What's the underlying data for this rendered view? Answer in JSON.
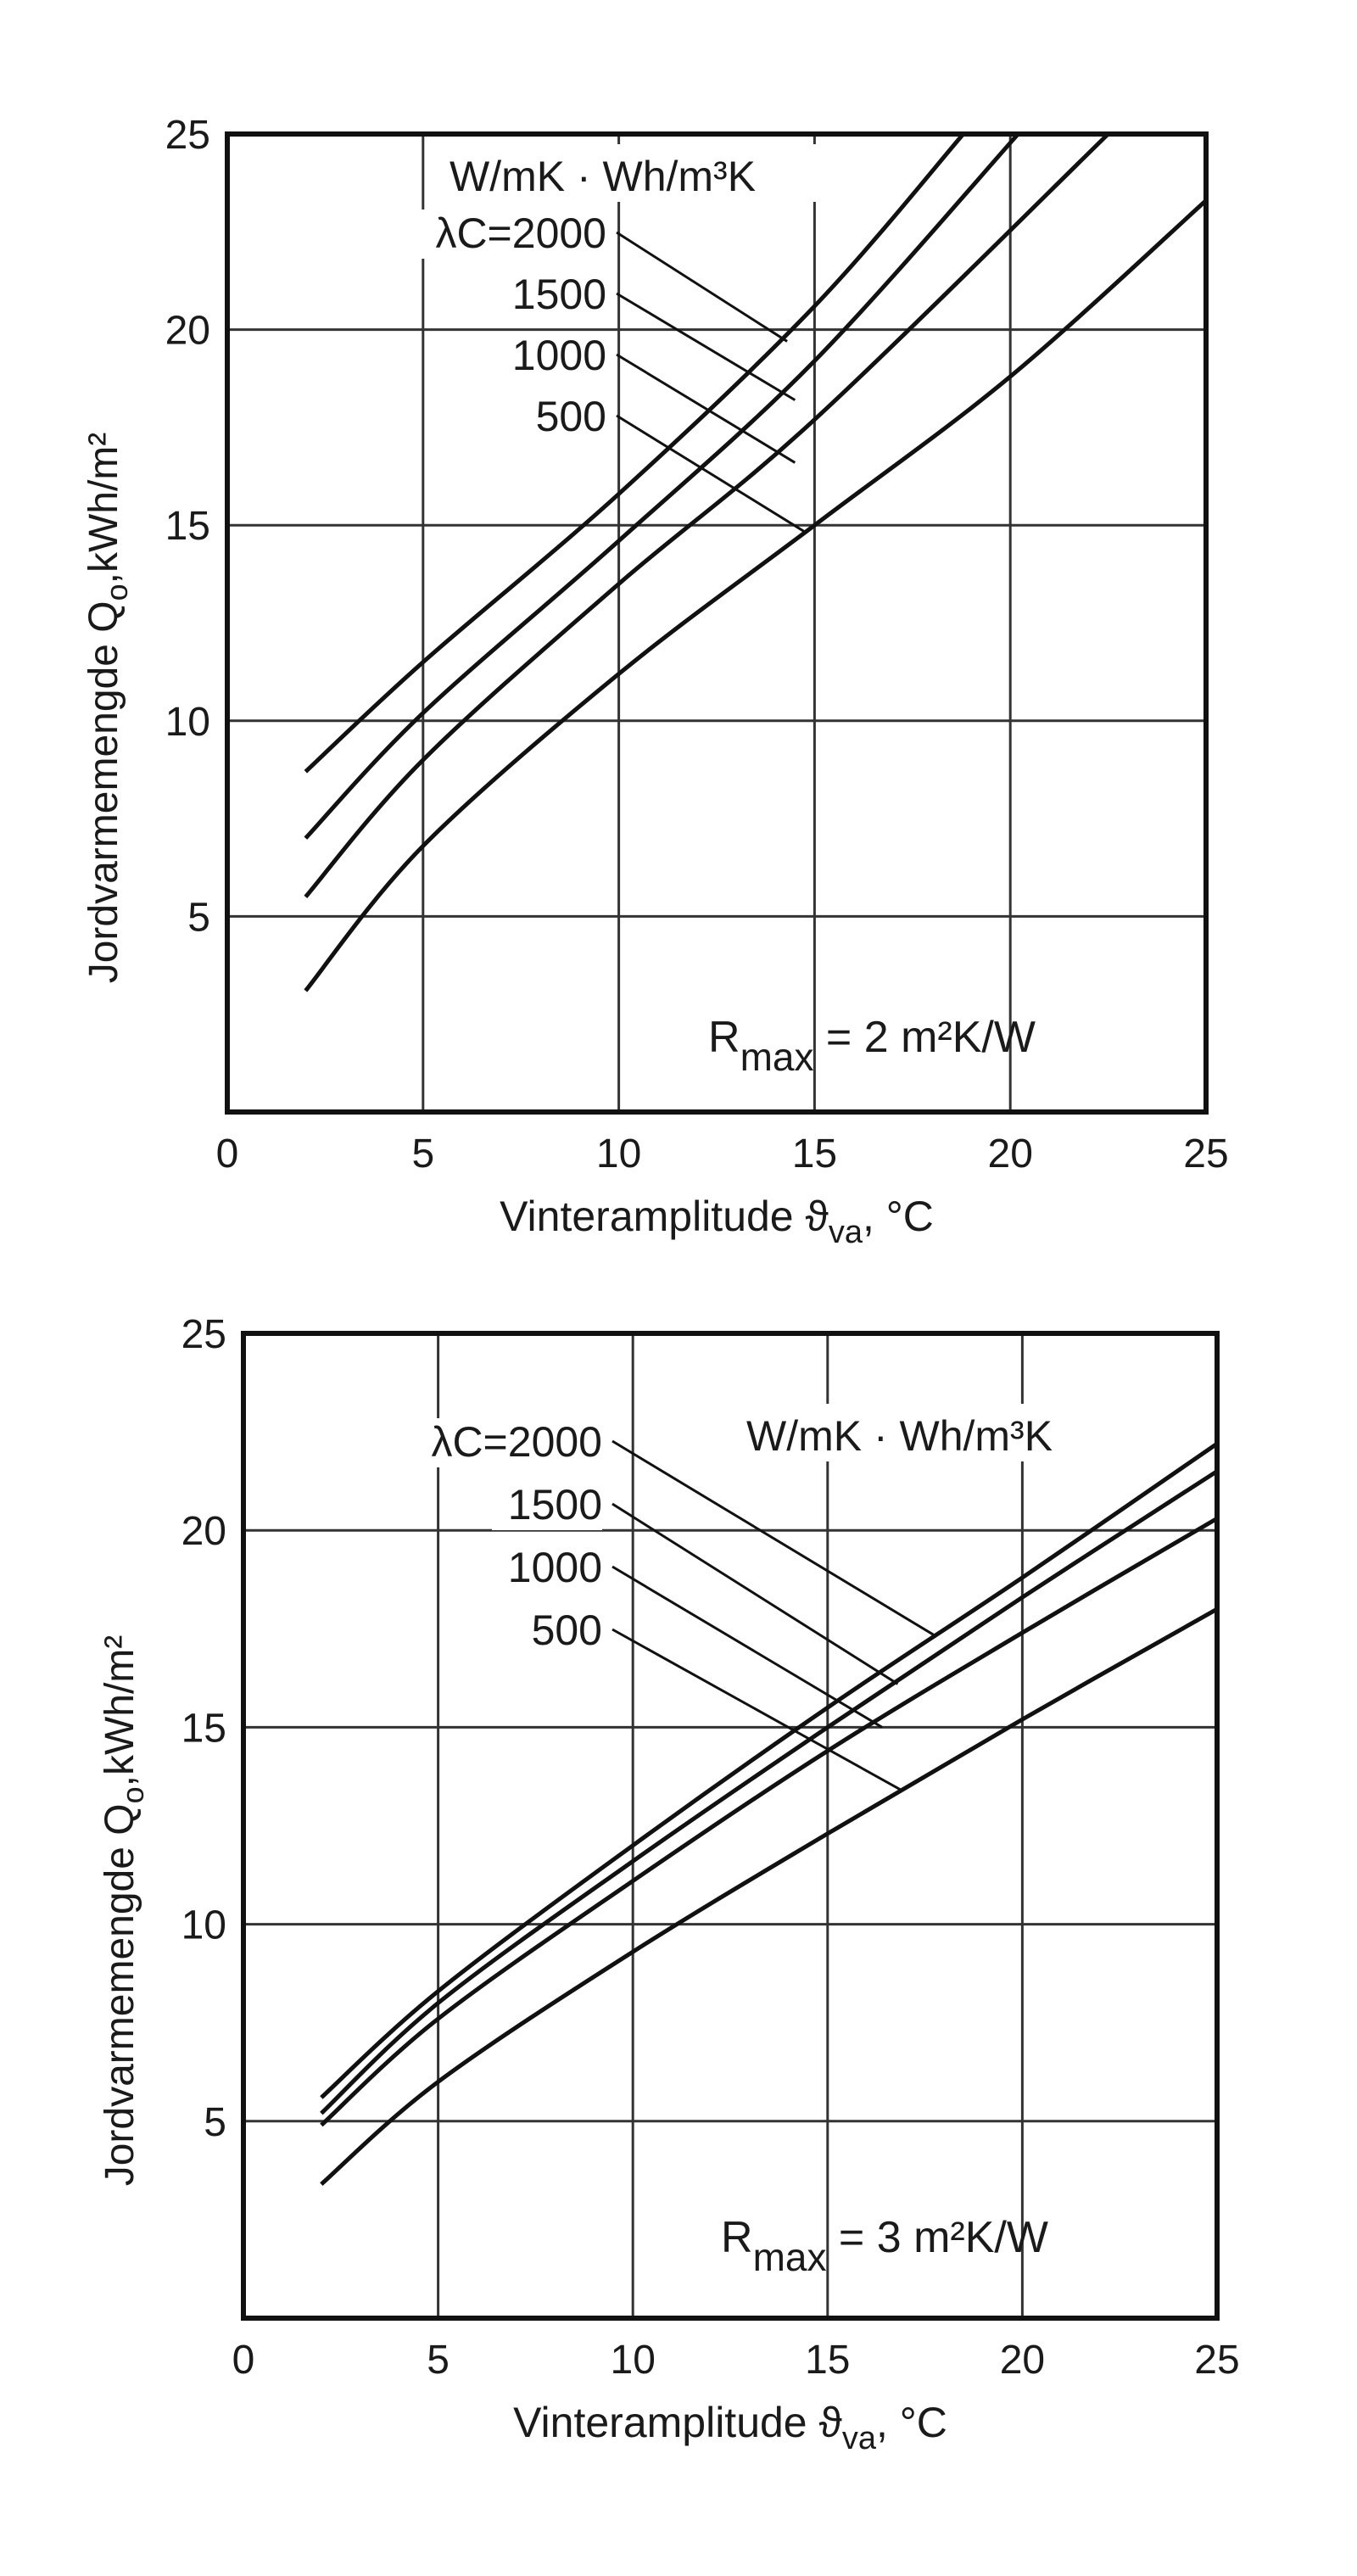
{
  "chart_data": [
    {
      "type": "line",
      "xlabel": "Vinteramplitude ϑ",
      "xlabel_sub": "va",
      "xlabel_unit": ", °C",
      "ylabel": "Jordvarmemengde Q",
      "ylabel_sub": "o",
      "ylabel_unit": ",kWh/m²",
      "xlim": [
        0,
        25
      ],
      "ylim": [
        0,
        25
      ],
      "xticks": [
        "0",
        "5",
        "10",
        "15",
        "20",
        "25"
      ],
      "yticks": [
        "5",
        "10",
        "15",
        "20",
        "25"
      ],
      "grid": true,
      "units_label": "W/mK · Wh/m³K",
      "annotation": {
        "main": "R",
        "sub": "max",
        "rest": " = 2 m²K/W"
      },
      "series": [
        {
          "name": "λC=2000",
          "x": [
            2,
            5,
            10,
            15,
            18.8
          ],
          "y": [
            8.7,
            11.5,
            15.8,
            20.6,
            25
          ],
          "leader_to": [
            14.3,
            19.7
          ]
        },
        {
          "name": "1500",
          "x": [
            2,
            5,
            10,
            15,
            20.2
          ],
          "y": [
            7.0,
            10.2,
            14.6,
            19.2,
            25
          ],
          "leader_to": [
            14.5,
            18.2
          ]
        },
        {
          "name": "1000",
          "x": [
            2,
            5,
            10,
            15,
            22.5
          ],
          "y": [
            5.5,
            9.0,
            13.5,
            17.7,
            25
          ],
          "leader_to": [
            14.5,
            16.6
          ]
        },
        {
          "name": "500",
          "x": [
            2,
            5,
            10,
            15,
            20,
            25
          ],
          "y": [
            3.1,
            6.8,
            11.2,
            15.0,
            18.8,
            23.3
          ],
          "leader_to": [
            14.8,
            14.8
          ]
        }
      ]
    },
    {
      "type": "line",
      "xlabel": "Vinteramplitude ϑ",
      "xlabel_sub": "va",
      "xlabel_unit": ", °C",
      "ylabel": "Jordvarmemengde Q",
      "ylabel_sub": "o",
      "ylabel_unit": ",kWh/m²",
      "xlim": [
        0,
        25
      ],
      "ylim": [
        0,
        25
      ],
      "xticks": [
        "0",
        "5",
        "10",
        "15",
        "20",
        "25"
      ],
      "yticks": [
        "5",
        "10",
        "15",
        "20",
        "25"
      ],
      "grid": true,
      "units_label": "W/mK · Wh/m³K",
      "annotation": {
        "main": "R",
        "sub": "max",
        "rest": " = 3 m²K/W"
      },
      "series": [
        {
          "name": "λC=2000",
          "x": [
            2,
            5,
            10,
            15,
            20,
            25
          ],
          "y": [
            5.6,
            8.3,
            12.0,
            15.5,
            18.8,
            22.2
          ],
          "leader_to": [
            17.8,
            17.3
          ]
        },
        {
          "name": "1500",
          "x": [
            2,
            5,
            10,
            15,
            20,
            25
          ],
          "y": [
            5.2,
            8.0,
            11.6,
            15.0,
            18.3,
            21.5
          ],
          "leader_to": [
            16.8,
            16.1
          ]
        },
        {
          "name": "1000",
          "x": [
            2,
            5,
            10,
            15,
            20,
            25
          ],
          "y": [
            4.9,
            7.6,
            11.1,
            14.4,
            17.4,
            20.3
          ],
          "leader_to": [
            16.4,
            15.0
          ]
        },
        {
          "name": "500",
          "x": [
            2,
            5,
            10,
            15,
            20,
            25
          ],
          "y": [
            3.4,
            6.0,
            9.3,
            12.3,
            15.2,
            18.0
          ],
          "leader_to": [
            16.9,
            13.4
          ]
        }
      ]
    }
  ]
}
